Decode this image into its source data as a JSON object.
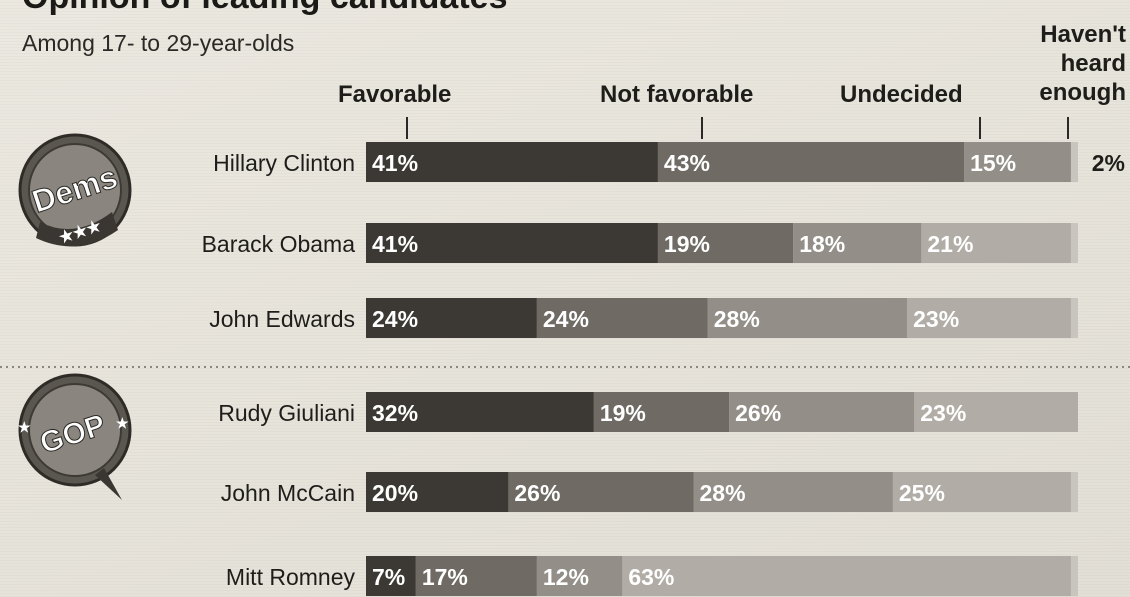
{
  "header": {
    "title": "Opinion of leading candidates",
    "subtitle": "Among 17- to 29-year-olds"
  },
  "badges": {
    "dems": "Dems",
    "gop": "GOP"
  },
  "colors": {
    "Favorable": "#3c3833",
    "Not favorable": "#6f6b64",
    "Undecided": "#938f88",
    "Haven't heard enough": "#b1ada6",
    "panel": "#c8c5be"
  },
  "chart_data": {
    "type": "bar",
    "orientation": "horizontal",
    "stacked": true,
    "title": "Opinion of leading candidates",
    "subtitle": "Among 17- to 29-year-olds",
    "unit": "%",
    "categories": [
      "Hillary Clinton",
      "Barack Obama",
      "John Edwards",
      "Rudy Giuliani",
      "John McCain",
      "Mitt Romney"
    ],
    "groups": [
      {
        "label": "Dems",
        "members": [
          "Hillary Clinton",
          "Barack Obama",
          "John Edwards"
        ]
      },
      {
        "label": "GOP",
        "members": [
          "Rudy Giuliani",
          "John McCain",
          "Mitt Romney"
        ]
      }
    ],
    "series": [
      {
        "name": "Favorable",
        "values": [
          41,
          41,
          24,
          32,
          20,
          7
        ]
      },
      {
        "name": "Not favorable",
        "values": [
          43,
          19,
          24,
          19,
          26,
          17
        ]
      },
      {
        "name": "Undecided",
        "values": [
          15,
          18,
          28,
          26,
          28,
          12
        ]
      },
      {
        "name": "Haven't heard enough",
        "values": [
          2,
          21,
          23,
          23,
          25,
          63
        ]
      }
    ],
    "data_labels": [
      [
        "41%",
        "43%",
        "15%",
        "2%"
      ],
      [
        "41%",
        "19%",
        "18%",
        "21%"
      ],
      [
        "24%",
        "24%",
        "28%",
        "23%"
      ],
      [
        "32%",
        "19%",
        "26%",
        "23%"
      ],
      [
        "20%",
        "26%",
        "28%",
        "25%"
      ],
      [
        "7%",
        "17%",
        "12%",
        "63%"
      ]
    ],
    "column_labels": [
      "Favorable",
      "Not favorable",
      "Undecided",
      "Haven't heard enough"
    ],
    "legend": "column headers above bars",
    "grid": false
  }
}
